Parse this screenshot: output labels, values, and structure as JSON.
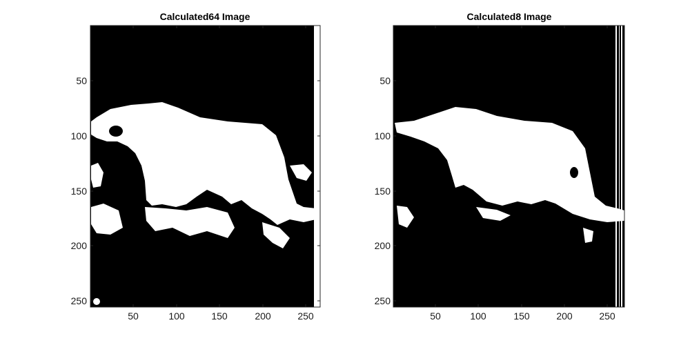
{
  "figure": {
    "panels": [
      {
        "title": "Calculated64 Image",
        "x_ticks": [
          "50",
          "100",
          "150",
          "200",
          "250"
        ],
        "y_ticks": [
          "50",
          "100",
          "150",
          "200",
          "250"
        ]
      },
      {
        "title": "Calculated8 Image",
        "x_ticks": [
          "50",
          "100",
          "150",
          "200",
          "250"
        ],
        "y_ticks": [
          "50",
          "100",
          "150",
          "200",
          "250"
        ]
      }
    ],
    "colors": {
      "foreground": "#ffffff",
      "background": "#000000",
      "axis": "#262626"
    }
  }
}
